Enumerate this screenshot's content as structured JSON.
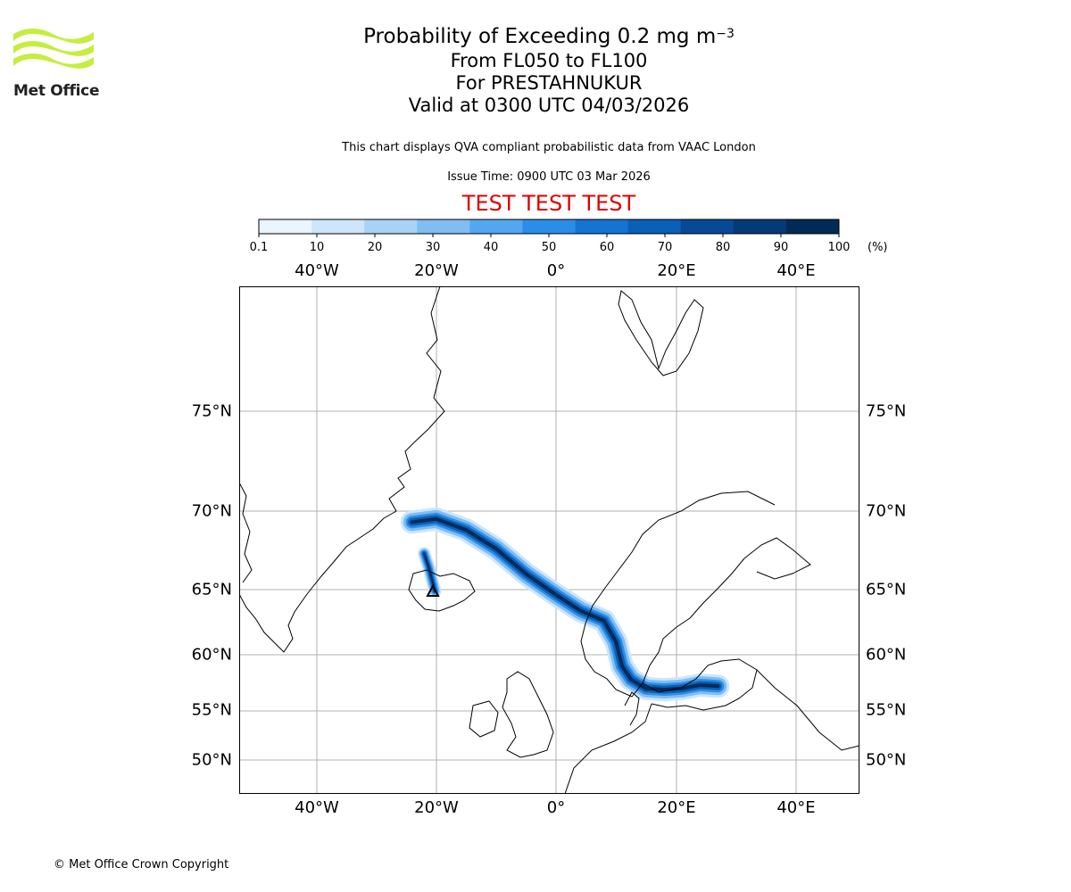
{
  "header": {
    "title_main": "Probability of Exceeding 0.2 mg m",
    "title_exponent": "−3",
    "levels": "From FL050 to FL100",
    "volcano": "For PRESTAHNUKUR",
    "valid": "Valid at 0300 UTC 04/03/2026",
    "disclaimer": "This chart displays QVA compliant probabilistic data from VAAC London",
    "issue_time": "Issue Time: 0900 UTC 03 Mar 2026",
    "test_banner": "TEST TEST TEST"
  },
  "logo": {
    "name": "Met Office",
    "colors": [
      "#c5ee3d",
      "#222222"
    ]
  },
  "colorbar": {
    "unit_label": "(%)",
    "ticks": [
      "0.1",
      "10",
      "20",
      "30",
      "40",
      "50",
      "60",
      "70",
      "80",
      "90",
      "100"
    ],
    "colors": [
      "#eaf4fe",
      "#cde6fb",
      "#a8d3f7",
      "#7fbdf3",
      "#52a7f1",
      "#2a8ee8",
      "#1474d2",
      "#0a5fb7",
      "#064a97",
      "#043a78",
      "#022a56"
    ]
  },
  "map": {
    "lon_labels": [
      "40°W",
      "20°W",
      "0°",
      "20°E",
      "40°E"
    ],
    "lat_labels": [
      "75°N",
      "70°N",
      "65°N",
      "60°N",
      "55°N",
      "50°N"
    ],
    "volcano_marker": "triangle",
    "plume": {
      "description_levels": "probability 0.1-100 %",
      "path_lonlat": [
        [
          -24,
          69.3
        ],
        [
          -20,
          69.5
        ],
        [
          -15,
          68.8
        ],
        [
          -10,
          67.6
        ],
        [
          -5,
          66.0
        ],
        [
          0,
          64.6
        ],
        [
          4,
          63.4
        ],
        [
          8,
          62.6
        ],
        [
          10,
          61.0
        ],
        [
          11,
          59.0
        ],
        [
          12.5,
          57.8
        ],
        [
          15,
          57.0
        ],
        [
          18,
          56.9
        ],
        [
          21,
          57.0
        ],
        [
          24,
          57.3
        ],
        [
          27,
          57.2
        ]
      ],
      "branch_lonlat": [
        [
          -22,
          67.3
        ],
        [
          -21.2,
          66.4
        ],
        [
          -20.6,
          65.5
        ],
        [
          -20.2,
          64.9
        ]
      ]
    }
  },
  "footer": {
    "copyright": "© Met Office Crown Copyright"
  }
}
